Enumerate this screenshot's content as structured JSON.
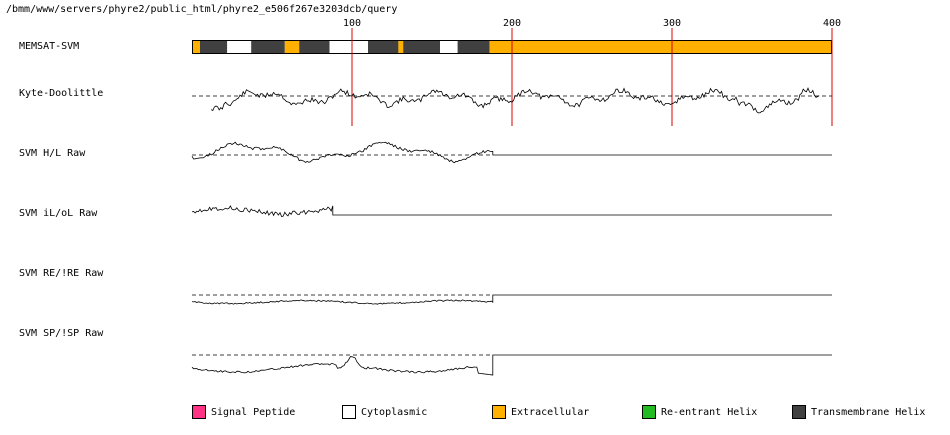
{
  "page": {
    "path": "/bmm/www/servers/phyre2/public_html/phyre2_e506f267e3203dcb/query"
  },
  "tracks": [
    {
      "id": "memsat",
      "label": "MEMSAT-SVM"
    },
    {
      "id": "kd",
      "label": "Kyte-Doolittle"
    },
    {
      "id": "hl",
      "label": "SVM H/L Raw"
    },
    {
      "id": "ilol",
      "label": "SVM iL/oL Raw"
    },
    {
      "id": "reire",
      "label": "SVM RE/!RE Raw"
    },
    {
      "id": "spisp",
      "label": "SVM SP/!SP Raw"
    }
  ],
  "axis": {
    "min": 0,
    "max": 400,
    "ticks": [
      {
        "value": 100,
        "label": "100"
      },
      {
        "value": 200,
        "label": "200"
      },
      {
        "value": 300,
        "label": "300"
      },
      {
        "value": 400,
        "label": "400"
      }
    ]
  },
  "colors": {
    "signal_peptide": "#ff3385",
    "cytoplasmic": "#ffffff",
    "extracellular": "#ffb000",
    "reentrant_helix": "#22bb22",
    "transmembrane_helix": "#404040",
    "tick_line": "#dd0000"
  },
  "memsat_segments": [
    {
      "start": 0,
      "end": 5,
      "type": "extracellular"
    },
    {
      "start": 5,
      "end": 22,
      "type": "transmembrane_helix"
    },
    {
      "start": 22,
      "end": 37,
      "type": "cytoplasmic"
    },
    {
      "start": 37,
      "end": 58,
      "type": "transmembrane_helix"
    },
    {
      "start": 58,
      "end": 67,
      "type": "extracellular"
    },
    {
      "start": 67,
      "end": 86,
      "type": "transmembrane_helix"
    },
    {
      "start": 86,
      "end": 110,
      "type": "cytoplasmic"
    },
    {
      "start": 110,
      "end": 129,
      "type": "transmembrane_helix"
    },
    {
      "start": 129,
      "end": 132,
      "type": "extracellular"
    },
    {
      "start": 132,
      "end": 155,
      "type": "transmembrane_helix"
    },
    {
      "start": 155,
      "end": 166,
      "type": "cytoplasmic"
    },
    {
      "start": 166,
      "end": 186,
      "type": "transmembrane_helix"
    },
    {
      "start": 186,
      "end": 400,
      "type": "extracellular"
    }
  ],
  "legend": [
    {
      "id": "signal_peptide",
      "label": "Signal Peptide",
      "color": "#ff3385"
    },
    {
      "id": "cytoplasmic",
      "label": "Cytoplasmic",
      "color": "#ffffff"
    },
    {
      "id": "extracellular",
      "label": "Extracellular",
      "color": "#ffb000"
    },
    {
      "id": "reentrant_helix",
      "label": "Re-entrant Helix",
      "color": "#22bb22"
    },
    {
      "id": "transmembrane_helix",
      "label": "Transmembrane Helix",
      "color": "#404040"
    }
  ]
}
